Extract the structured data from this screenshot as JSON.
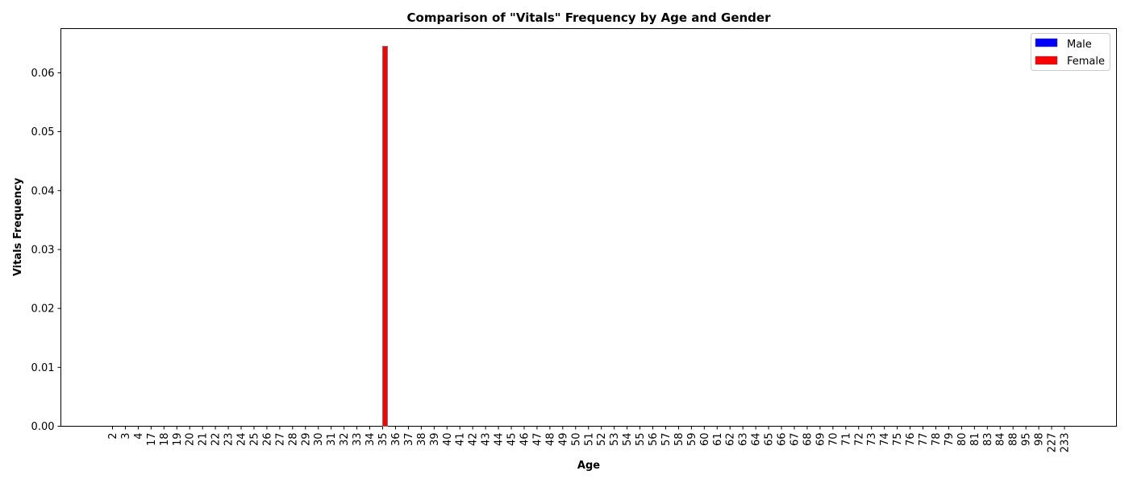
{
  "chart_data": {
    "type": "bar",
    "title": "Comparison of \"Vitals\" Frequency by Age and Gender",
    "xlabel": "Age",
    "ylabel": "Vitals Frequency",
    "ylim": [
      0,
      0.0675
    ],
    "yticks": [
      "0.00",
      "0.01",
      "0.02",
      "0.03",
      "0.04",
      "0.05",
      "0.06"
    ],
    "categories": [
      "2",
      "3",
      "4",
      "17",
      "18",
      "19",
      "20",
      "21",
      "22",
      "23",
      "24",
      "25",
      "26",
      "27",
      "28",
      "29",
      "30",
      "31",
      "32",
      "33",
      "34",
      "35",
      "36",
      "37",
      "38",
      "39",
      "40",
      "41",
      "42",
      "43",
      "44",
      "45",
      "46",
      "47",
      "48",
      "49",
      "50",
      "51",
      "52",
      "53",
      "54",
      "55",
      "56",
      "57",
      "58",
      "59",
      "60",
      "61",
      "62",
      "63",
      "64",
      "65",
      "66",
      "67",
      "68",
      "69",
      "70",
      "71",
      "72",
      "73",
      "74",
      "75",
      "76",
      "77",
      "78",
      "79",
      "80",
      "81",
      "83",
      "84",
      "88",
      "95",
      "98",
      "227",
      "233"
    ],
    "series": [
      {
        "name": "Male",
        "color": "#0000ff",
        "values": [
          0,
          0,
          0,
          0,
          0,
          0,
          0,
          0,
          0,
          0,
          0,
          0,
          0,
          0,
          0,
          0,
          0,
          0,
          0,
          0,
          0,
          0,
          0,
          0,
          0,
          0,
          0,
          0,
          0,
          0,
          0,
          0,
          0,
          0,
          0,
          0,
          0,
          0,
          0,
          0,
          0,
          0,
          0,
          0,
          0,
          0,
          0,
          0,
          0,
          0,
          0,
          0,
          0,
          0,
          0,
          0,
          0,
          0,
          0,
          0,
          0,
          0,
          0,
          0,
          0,
          0,
          0,
          0,
          0,
          0,
          0,
          0,
          0,
          0,
          0
        ]
      },
      {
        "name": "Female",
        "color": "#ff0000",
        "values": [
          0,
          0,
          0,
          0,
          0,
          0,
          0,
          0,
          0,
          0,
          0,
          0,
          0,
          0,
          0,
          0,
          0,
          0,
          0,
          0,
          0,
          0.0645,
          0,
          0,
          0,
          0,
          0,
          0,
          0,
          0,
          0,
          0,
          0,
          0,
          0,
          0,
          0,
          0,
          0,
          0,
          0,
          0,
          0,
          0,
          0,
          0,
          0,
          0,
          0,
          0,
          0,
          0,
          0,
          0,
          0,
          0,
          0,
          0,
          0,
          0,
          0,
          0,
          0,
          0,
          0,
          0,
          0,
          0,
          0,
          0,
          0,
          0,
          0,
          0,
          0
        ]
      }
    ],
    "legend_position": "top-right",
    "grid": false
  }
}
